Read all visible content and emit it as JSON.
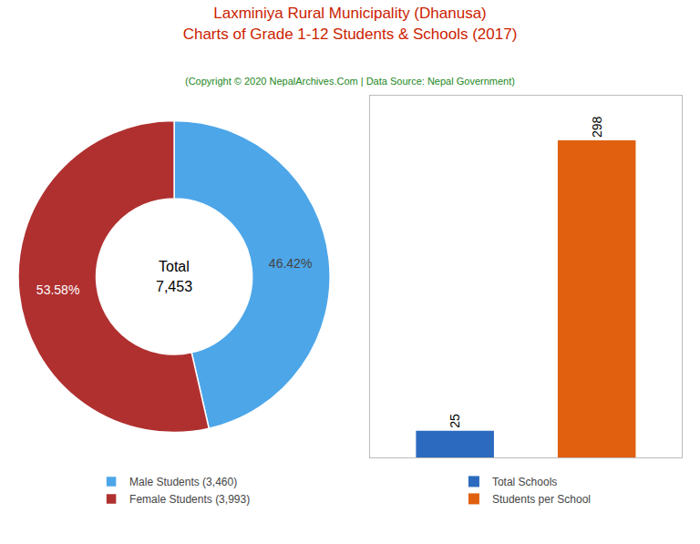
{
  "title": "Laxminiya Rural Municipality (Dhanusa)\nCharts of Grade 1-12 Students & Schools (2017)",
  "subtitle": "(Copyright © 2020 NepalArchives.Com | Data Source: Nepal Government)",
  "chart_data": [
    {
      "type": "pie",
      "categories": [
        "Male Students (3,460)",
        "Female Students (3,993)"
      ],
      "values": [
        46.42,
        53.58
      ],
      "value_labels": [
        "46.42%",
        "53.58%"
      ],
      "colors": [
        "#4da6e8",
        "#b03030"
      ],
      "data_labels": true,
      "annotations": [
        "Total",
        "7,453"
      ],
      "legend": "bottom"
    },
    {
      "type": "bar",
      "categories": [
        "Total Schools",
        "Students per School"
      ],
      "values": [
        25,
        298
      ],
      "colors": [
        "#2b6abf",
        "#e06010"
      ],
      "data_labels": true,
      "ylim": [
        0,
        340
      ],
      "tick_labels": false,
      "grid": false,
      "legend": "bottom"
    }
  ]
}
